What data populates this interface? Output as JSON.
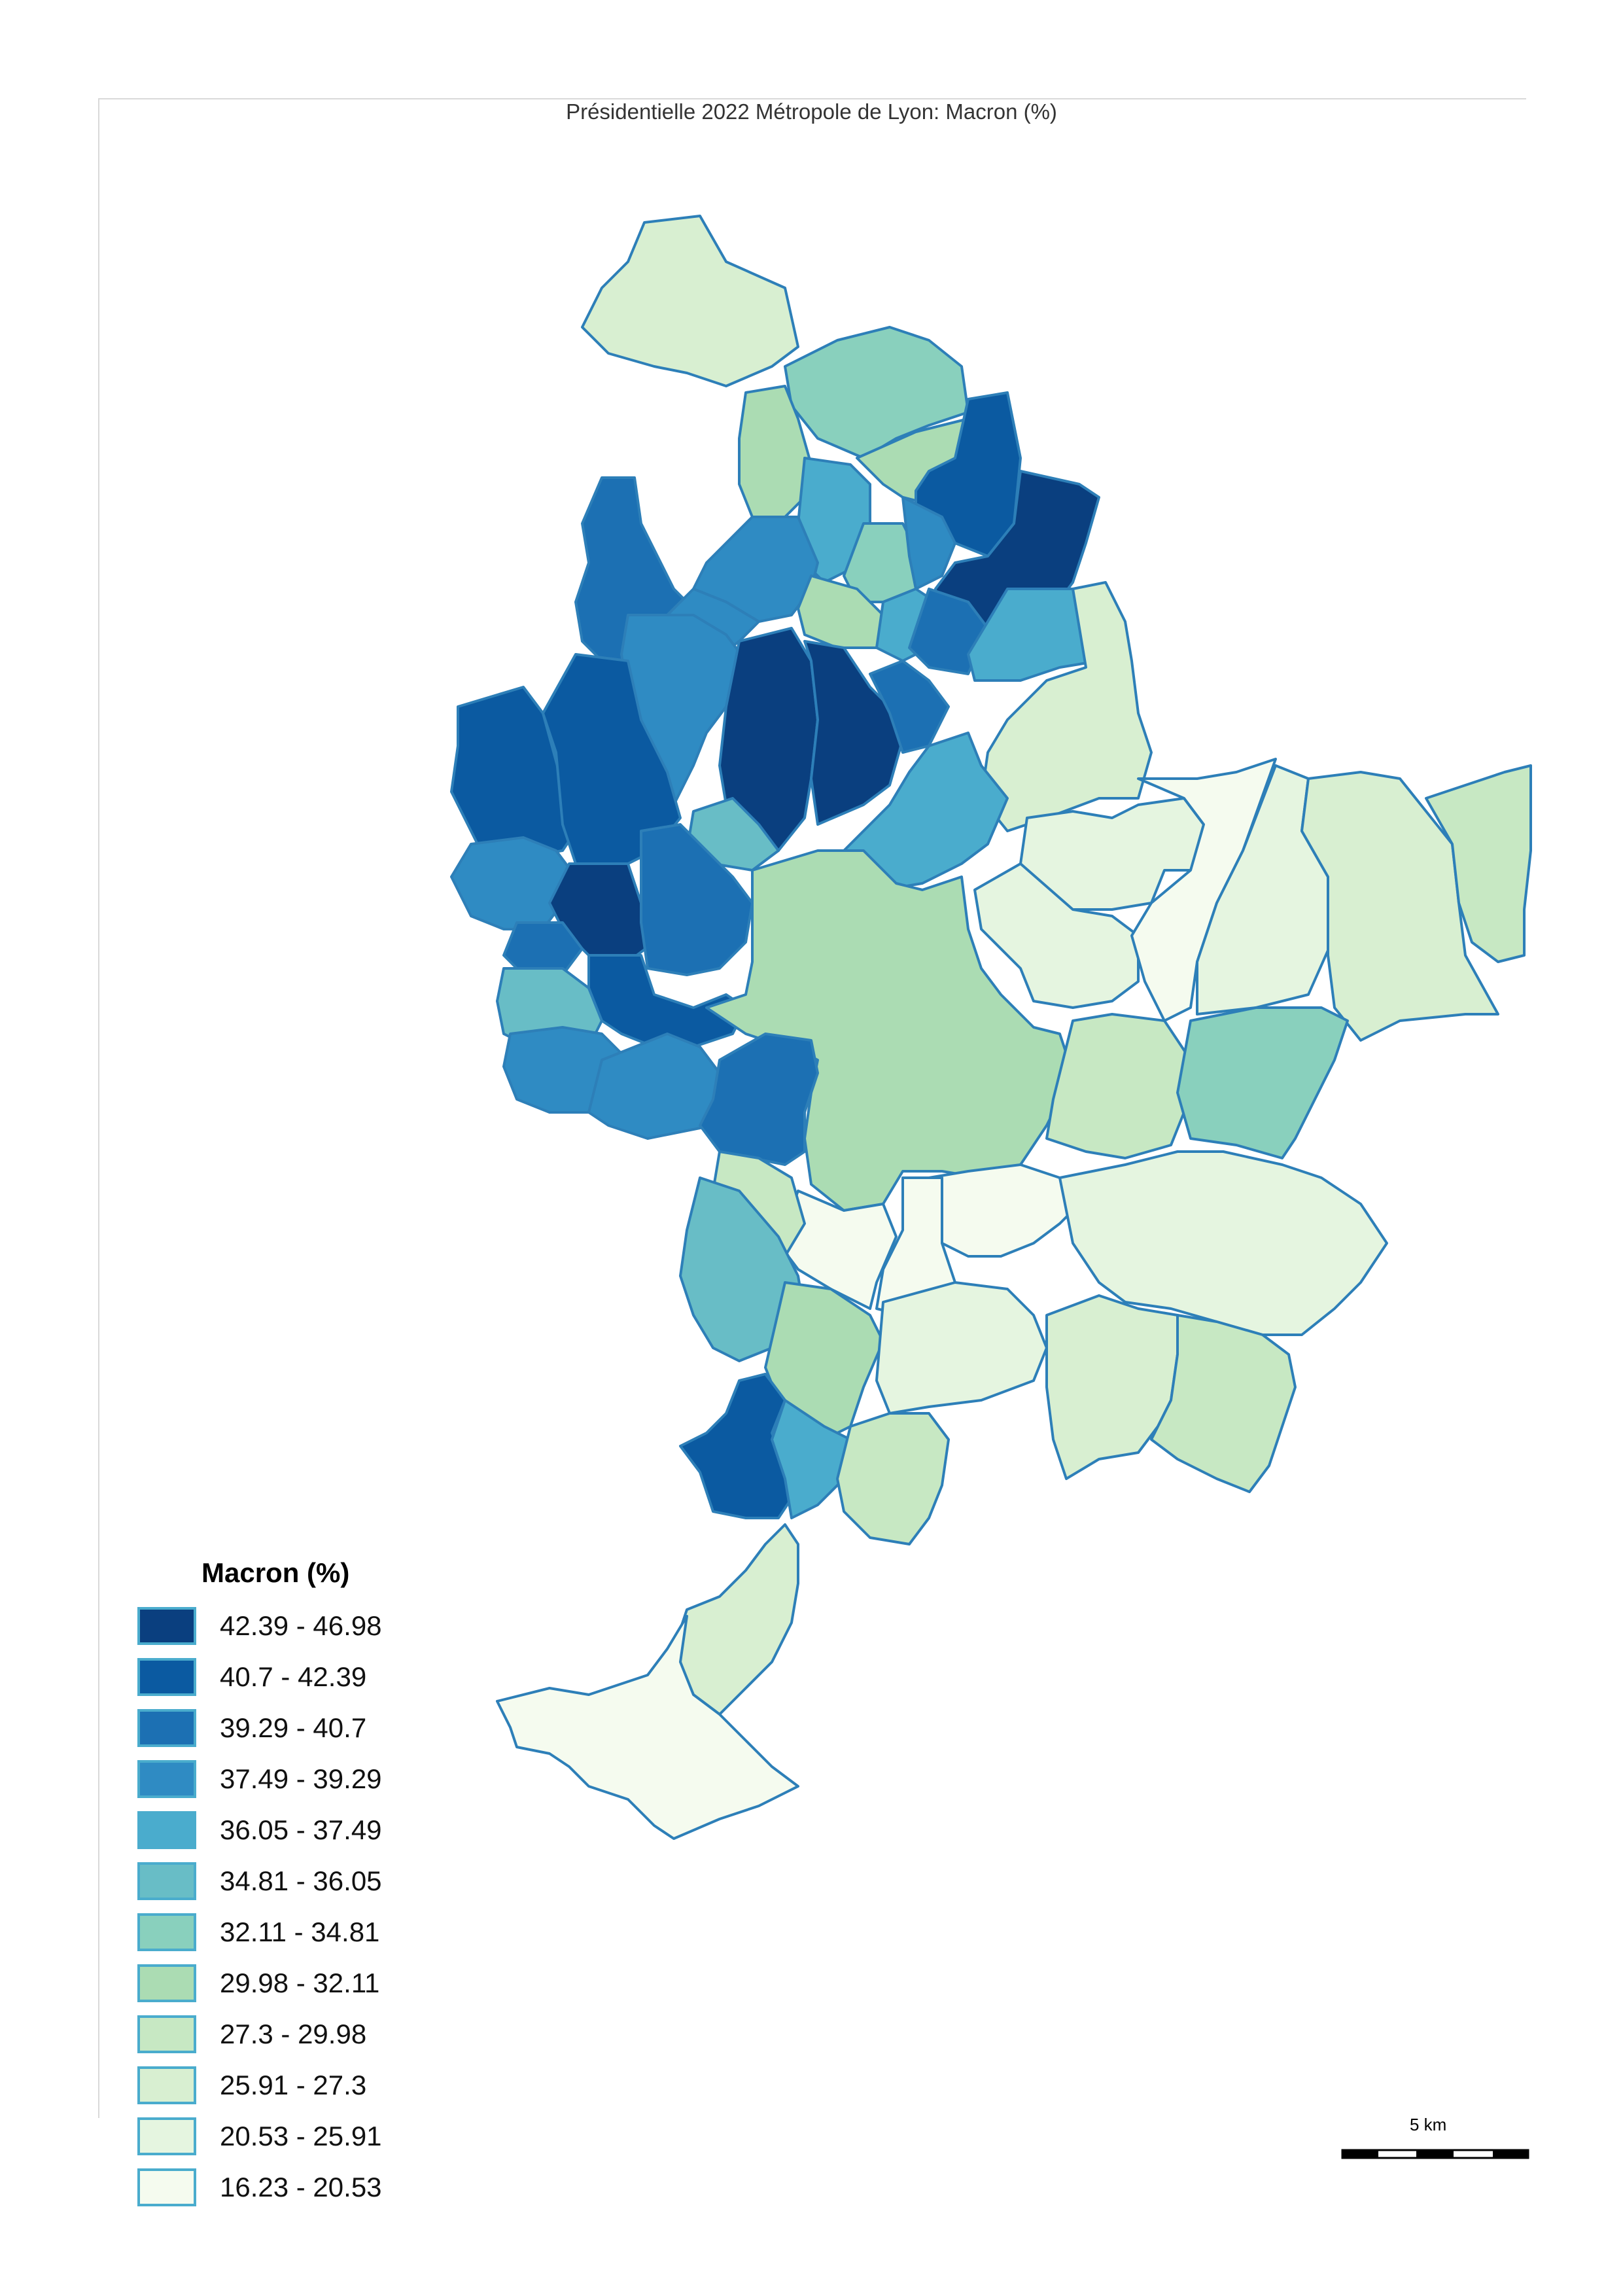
{
  "title": "Présidentielle 2022 Métropole de Lyon: Macron (%)",
  "legend": {
    "title": "Macron (%)",
    "classes": [
      {
        "label": "42.39 - 46.98",
        "color": "#0a3f7f"
      },
      {
        "label": "40.7 - 42.39",
        "color": "#0b5aa1"
      },
      {
        "label": "39.29 - 40.7",
        "color": "#1c70b3"
      },
      {
        "label": "37.49 - 39.29",
        "color": "#2f8bc3"
      },
      {
        "label": "36.05 - 37.49",
        "color": "#4aaccd"
      },
      {
        "label": "34.81 - 36.05",
        "color": "#68bdc6"
      },
      {
        "label": "32.11 - 34.81",
        "color": "#89d0bd"
      },
      {
        "label": "29.98 - 32.11",
        "color": "#abdcb3"
      },
      {
        "label": "27.3 - 29.98",
        "color": "#c7e8c3"
      },
      {
        "label": "25.91 - 27.3",
        "color": "#d8efd1"
      },
      {
        "label": "20.53 - 25.91",
        "color": "#e5f5e0"
      },
      {
        "label": "16.23 - 20.53",
        "color": "#f5fbef"
      }
    ]
  },
  "scalebar": {
    "label": "5 km"
  }
}
